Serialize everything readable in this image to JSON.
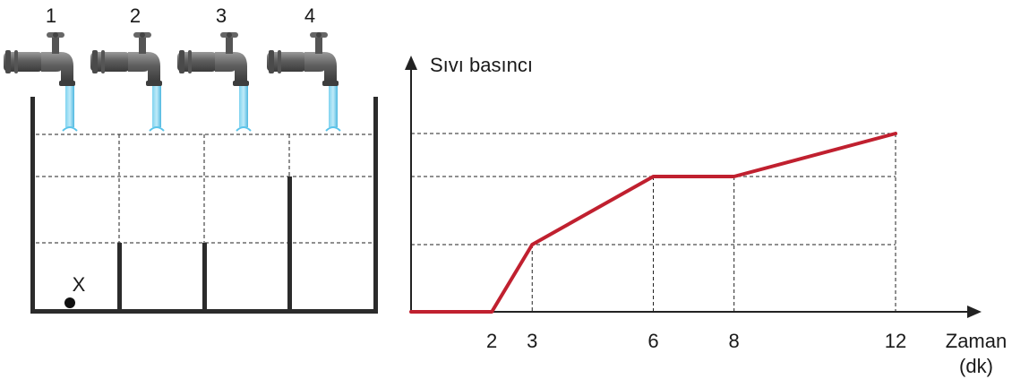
{
  "faucets": [
    {
      "label": "1",
      "running": true
    },
    {
      "label": "2",
      "running": true
    },
    {
      "label": "3",
      "running": true
    },
    {
      "label": "4",
      "running": true
    }
  ],
  "tank": {
    "point_label": "X",
    "divider_heights_in_levels": [
      1,
      1,
      2
    ],
    "levels": 3
  },
  "chart_data": {
    "type": "line",
    "ylabel": "Sıvı basıncı",
    "xlabel_line1": "Zaman",
    "xlabel_line2": "(dk)",
    "x_ticks": [
      2,
      3,
      6,
      8,
      12
    ],
    "y_levels": 3,
    "series": [
      {
        "points": [
          [
            0,
            0
          ],
          [
            2,
            0
          ],
          [
            3,
            1
          ],
          [
            6,
            2
          ],
          [
            8,
            2
          ],
          [
            12,
            3
          ]
        ]
      }
    ],
    "xlim": [
      0,
      12
    ],
    "ylim": [
      0,
      3
    ],
    "grid": "dashed",
    "line_color": "#c0202f"
  },
  "colors": {
    "wall": "#2b2b2b",
    "water": "#5bc4ea",
    "faucet": "#6b6b6b"
  }
}
